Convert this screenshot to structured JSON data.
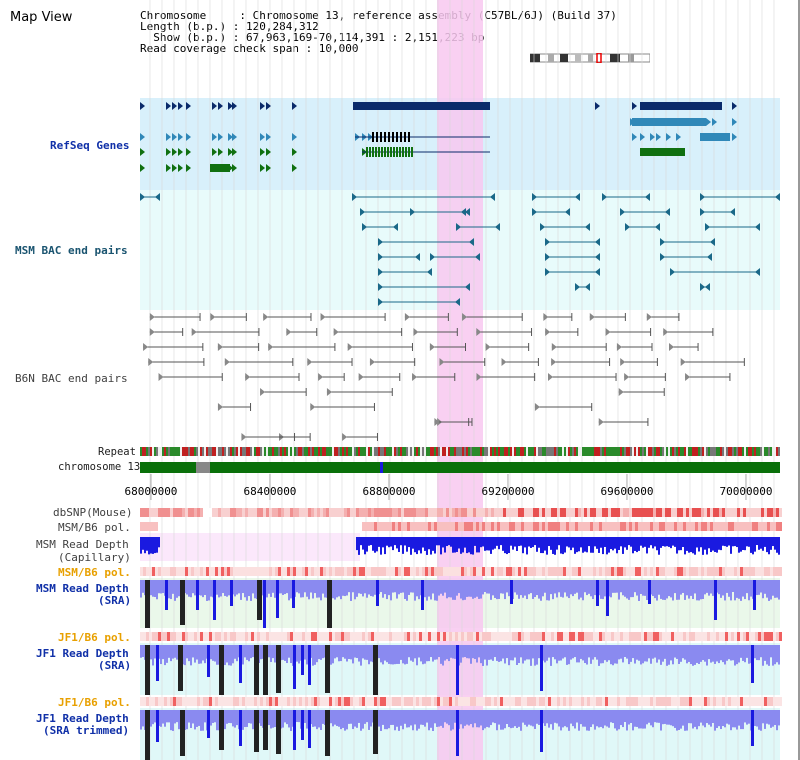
{
  "view": {
    "title": "Map View"
  },
  "info": {
    "chromosome_line": "Chromosome     : Chromosome 13, reference assembly (C57BL/6J) (Build 37)",
    "length_line": "Length (b.p.) : 120,284,312",
    "show_line": "  Show (b.p.) : 67,963,169-70,114,391 : 2,151,223 bp",
    "coverage_line": "Read coverage check span : 10,000"
  },
  "tracks": {
    "refseq": "RefSeq Genes",
    "msm_bac": "MSM BAC end pairs",
    "b6n_bac": "B6N BAC end pairs",
    "repeat": "Repeat",
    "chromosome": "chromosome 13",
    "dbsnp": "dbSNP(Mouse)",
    "msm_b6_pol": "MSM/B6 pol.",
    "msm_depth_cap_1": "MSM Read Depth",
    "msm_depth_cap_2": "(Capillary)",
    "msm_b6_pol2": "MSM/B6 pol.",
    "msm_depth_sra_1": "MSM Read Depth",
    "msm_depth_sra_2": "(SRA)",
    "jf1_b6_pol": "JF1/B6 pol.",
    "jf1_depth_sra_1": "JF1 Read Depth",
    "jf1_depth_sra_2": "(SRA)",
    "jf1_b6_pol2": "JF1/B6 pol.",
    "jf1_depth_trim_1": "JF1 Read Depth",
    "jf1_depth_trim_2": "(SRA trimmed)"
  },
  "axis": {
    "ticks": [
      "68000000",
      "68400000",
      "68800000",
      "69200000",
      "69600000",
      "70000000"
    ],
    "ticks_val": [
      68000000,
      68400000,
      68800000,
      69200000,
      69600000,
      70000000
    ]
  },
  "colors": {
    "highlight": "#f8c8f0",
    "refseq_bg": "#d8f0fb",
    "bac_bg": "#e8fbfb",
    "gene_dark": "#0a2a6a",
    "gene_mid": "#3088b8",
    "gene_green": "#107010",
    "msm_bac": "#1a6888",
    "b6n_bac": "#555555",
    "chrom_green": "#0a700a",
    "depth_blue": "#1a1ae0",
    "depth_light": "#8a8af0"
  }
}
